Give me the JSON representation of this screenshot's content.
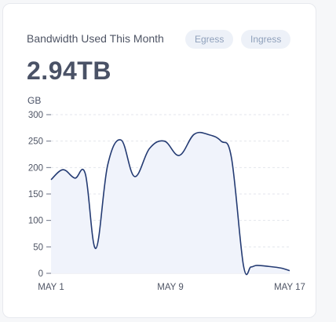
{
  "card": {
    "title": "Bandwidth Used This Month",
    "filters": [
      "Egress",
      "Ingress"
    ],
    "total": "2.94TB",
    "unit_label": "GB"
  },
  "colors": {
    "line": "#243b73",
    "fill": "#f0f3fb",
    "grid": "#e3e6ec",
    "pill_bg": "#edf1f8",
    "pill_text": "#8fa0bb"
  },
  "chart_data": {
    "type": "area",
    "title": "",
    "xlabel": "",
    "ylabel": "GB",
    "ylim": [
      0,
      300
    ],
    "yticks": [
      0,
      50,
      100,
      150,
      200,
      250,
      300
    ],
    "xlim": [
      1,
      17
    ],
    "x_tick_labels": [
      "MAY 1",
      "MAY 9",
      "MAY 17"
    ],
    "x_tick_values": [
      1,
      9,
      17
    ],
    "grid": true,
    "x": [
      1,
      1.8,
      2.6,
      3.3,
      4.0,
      4.8,
      5.7,
      6.6,
      7.6,
      8.6,
      9.6,
      10.6,
      11.6,
      12.4,
      13.1,
      13.9,
      14.4,
      14.8,
      15.6,
      16.4,
      17.0
    ],
    "values": [
      177,
      196,
      180,
      188,
      47,
      205,
      252,
      183,
      236,
      250,
      223,
      263,
      262,
      250,
      218,
      15,
      12,
      15,
      13,
      10,
      5
    ]
  }
}
